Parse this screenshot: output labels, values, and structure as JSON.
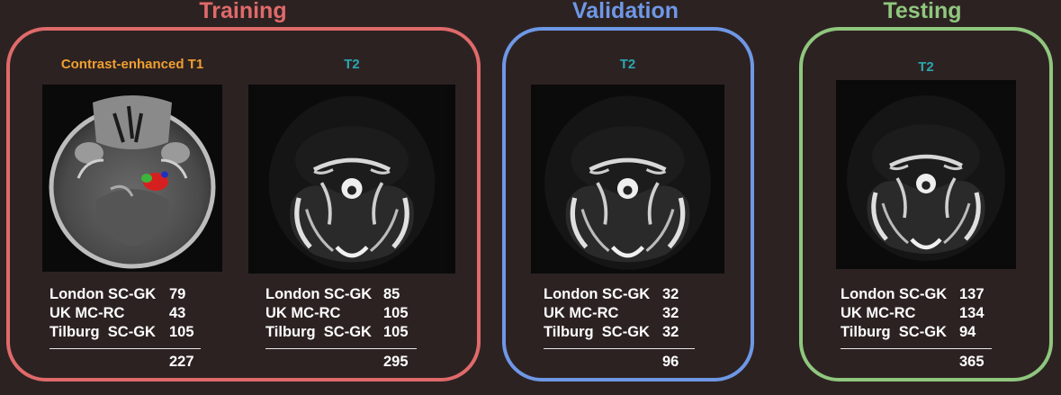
{
  "colors": {
    "background": "#2d2222",
    "training": "#e06a6a",
    "validation": "#6e98e6",
    "testing": "#8fc77e",
    "ce_t1_label": "#f0a030",
    "t2_label": "#2aa7b0"
  },
  "training": {
    "title": "Training",
    "ce_t1": {
      "label": "Contrast-enhanced T1",
      "rows": [
        {
          "name": "London SC-GK",
          "value": "79"
        },
        {
          "name": "UK MC-RC",
          "value": "43"
        },
        {
          "name": "Tilburg  SC-GK",
          "value": "105"
        }
      ],
      "total": "227"
    },
    "t2": {
      "label": "T2",
      "rows": [
        {
          "name": "London SC-GK",
          "value": "85"
        },
        {
          "name": "UK MC-RC",
          "value": "105"
        },
        {
          "name": "Tilburg  SC-GK",
          "value": "105"
        }
      ],
      "total": "295"
    }
  },
  "validation": {
    "title": "Validation",
    "t2": {
      "label": "T2",
      "rows": [
        {
          "name": "London SC-GK",
          "value": "32"
        },
        {
          "name": "UK MC-RC",
          "value": "32"
        },
        {
          "name": "Tilburg  SC-GK",
          "value": "32"
        }
      ],
      "total": "96"
    }
  },
  "testing": {
    "title": "Testing",
    "t2": {
      "label": "T2",
      "rows": [
        {
          "name": "London SC-GK",
          "value": "137"
        },
        {
          "name": "UK MC-RC",
          "value": "134"
        },
        {
          "name": "Tilburg  SC-GK",
          "value": "94"
        }
      ],
      "total": "365"
    }
  }
}
